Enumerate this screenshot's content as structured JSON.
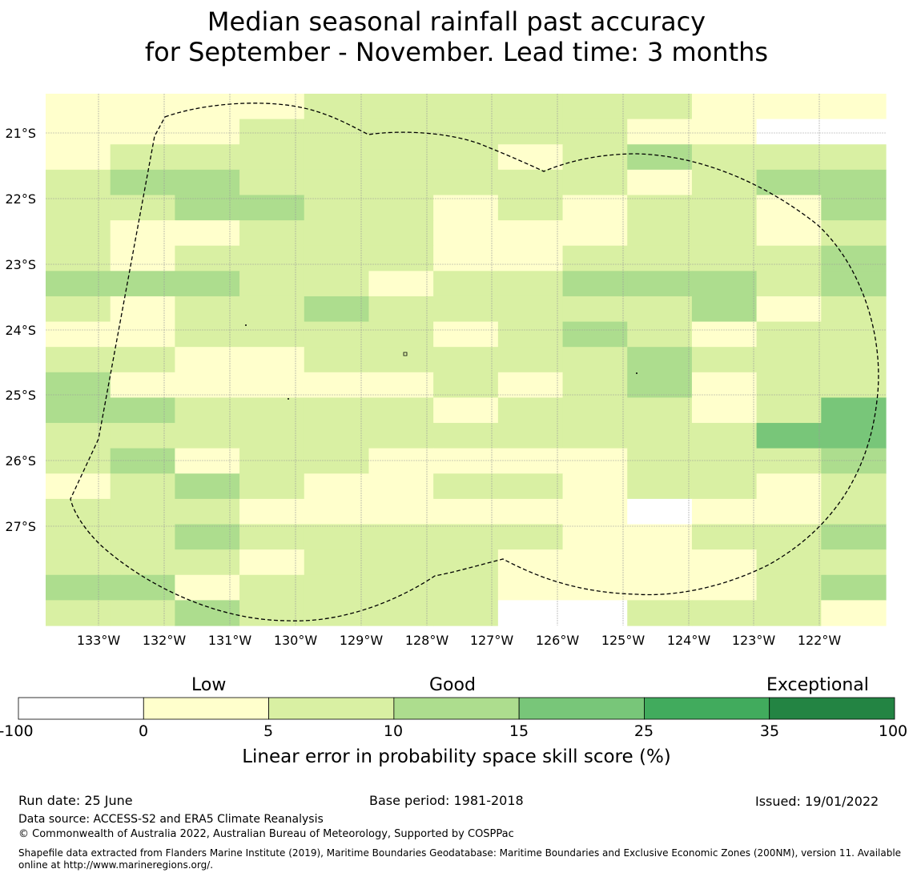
{
  "title": {
    "line1": "Median seasonal rainfall past accuracy",
    "line2": "for September - November. Lead time: 3 months"
  },
  "map": {
    "lat_labels": [
      "21°S",
      "22°S",
      "23°S",
      "24°S",
      "25°S",
      "26°S",
      "27°S"
    ],
    "lon_labels": [
      "133°W",
      "132°W",
      "131°W",
      "130°W",
      "129°W",
      "128°W",
      "127°W",
      "126°W",
      "125°W",
      "124°W",
      "123°W",
      "122°W"
    ],
    "grid_levels": [
      "1111222222111",
      "1112222221100",
      "1222222123222",
      "2332222221233",
      "2233221212213",
      "2112221112212",
      "2122221122223",
      "3332212233323",
      "2122322222312",
      "1122221232122",
      "2211222223222",
      "3111112123122",
      "3322221222124",
      "2222222222244",
      "2312211112223",
      "1232112212212",
      "2221111110112",
      "2232222211223",
      "2221222111122",
      "3312222111123",
      "2232222002221"
    ],
    "level_legend": {
      "0": "-100 to 0",
      "1": "0 to 5",
      "2": "5 to 10",
      "3": "10 to 15",
      "4": "15 to 25"
    }
  },
  "colorbar": {
    "categories": [
      "Low",
      "Good",
      "Exceptional"
    ],
    "ticks": [
      "-100",
      "0",
      "5",
      "10",
      "15",
      "25",
      "35",
      "100"
    ],
    "colors": [
      "#ffffff",
      "#ffffcc",
      "#d9f0a3",
      "#addd8e",
      "#78c679",
      "#41ab5d",
      "#238443"
    ],
    "label": "Linear error in probability space skill score (%)"
  },
  "footer": {
    "run_date": "Run date: 25 June",
    "base_period": "Base period: 1981-2018",
    "issued": "Issued: 19/01/2022",
    "data_source": "Data source: ACCESS-S2 and ERA5 Climate Reanalysis",
    "copyright": "© Commonwealth of Australia 2022, Australian Bureau of Meteorology, Supported by COSPPac",
    "shapefile_line1": "Shapefile data extracted from Flanders Marine Institute (2019), Maritime Boundaries Geodatabase: Maritime Boundaries and Exclusive Economic Zones (200NM), version 11. Available",
    "shapefile_line2": "online at http://www.marineregions.org/."
  }
}
